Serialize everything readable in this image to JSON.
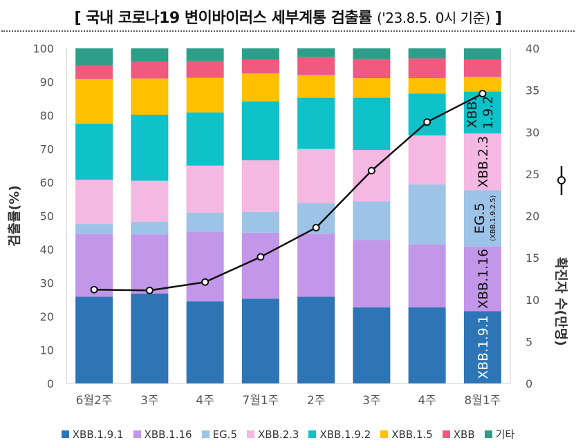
{
  "title_main": "[ 국내 코로나19 변이바이러스 세부계통 검출률",
  "title_note": "('23.8.5. 0시 기준)",
  "title_end": "]",
  "chart_data": {
    "type": "bar",
    "stacked": true,
    "categories": [
      "6월2주",
      "3주",
      "4주",
      "7월1주",
      "2주",
      "3주",
      "4주",
      "8월1주"
    ],
    "ylabel": "검출률(%)",
    "ylim": [
      0,
      100
    ],
    "yticks": [
      "0",
      "10",
      "20",
      "30",
      "40",
      "50",
      "60",
      "70",
      "80",
      "90",
      "100"
    ],
    "y2label": "확진자 수(만명)",
    "y2lim": [
      0,
      40
    ],
    "y2ticks": [
      "0",
      "5",
      "10",
      "15",
      "20",
      "25",
      "30",
      "35",
      "40"
    ],
    "series": [
      {
        "name": "XBB.1.9.1",
        "color": "#2e75b6",
        "values": [
          25.9,
          26.8,
          24.5,
          25.3,
          25.9,
          22.7,
          22.7,
          21.6
        ]
      },
      {
        "name": "XBB.1.16",
        "color": "#c296e8",
        "values": [
          18.8,
          17.7,
          20.8,
          19.7,
          18.8,
          20.1,
          18.8,
          19.3
        ]
      },
      {
        "name": "EG.5",
        "color": "#9dc3e6",
        "values": [
          2.9,
          3.8,
          5.7,
          6.2,
          9.1,
          11.6,
          17.9,
          16.8
        ]
      },
      {
        "name": "XBB.2.3",
        "color": "#f4b8e2",
        "values": [
          13.2,
          12.2,
          14.0,
          15.4,
          16.2,
          15.3,
          14.6,
          16.9
        ]
      },
      {
        "name": "XBB.1.9.2",
        "color": "#0fc1c8",
        "values": [
          16.7,
          19.7,
          15.9,
          17.6,
          15.3,
          15.6,
          12.5,
          12.5
        ]
      },
      {
        "name": "XBB.1.5",
        "color": "#ffc000",
        "values": [
          13.4,
          10.8,
          10.3,
          8.3,
          6.7,
          5.8,
          4.6,
          4.4
        ]
      },
      {
        "name": "XBB",
        "color": "#f05a7e",
        "values": [
          3.9,
          5.0,
          5.1,
          4.2,
          5.4,
          5.8,
          5.9,
          5.2
        ]
      },
      {
        "name": "기타",
        "color": "#2f9e88",
        "values": [
          5.2,
          4.0,
          3.7,
          3.3,
          2.6,
          3.1,
          3.0,
          3.3
        ]
      }
    ],
    "line": {
      "name": "확진자 수(만명)",
      "color": "#111111",
      "values": [
        11.2,
        11.1,
        12.1,
        15.1,
        18.6,
        25.4,
        31.2,
        34.6
      ]
    },
    "bar_labels": [
      {
        "series": "XBB.1.9.1",
        "text": "XBB.1.9.1"
      },
      {
        "series": "XBB.1.16",
        "text": "XBB.1.16"
      },
      {
        "series": "EG.5",
        "text": "EG.5",
        "sub": "(XBB.1.9.2.5)"
      },
      {
        "series": "XBB.2.3",
        "text": "XBB.2.3"
      },
      {
        "series": "XBB.1.9.2",
        "text": "XBB.",
        "text2": "1.9.2"
      }
    ]
  }
}
